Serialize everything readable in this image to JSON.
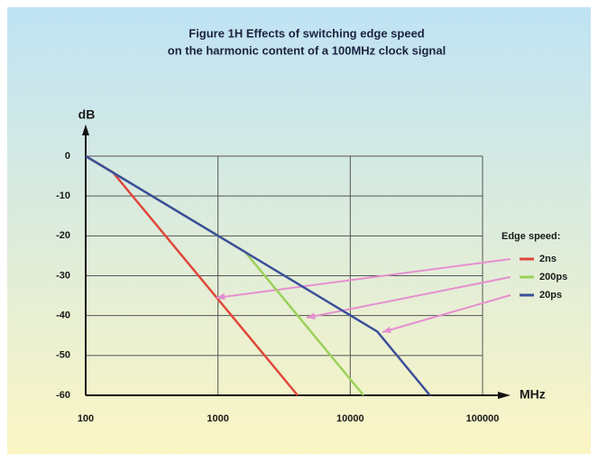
{
  "chart_data": {
    "type": "line",
    "title": "Figure 1H      Effects of switching edge speed",
    "subtitle": "on the harmonic content of a 100MHz clock signal",
    "y_label": "dB",
    "x_label": "MHz",
    "legend_title": "Edge speed:",
    "log_x": true,
    "grid": true,
    "legend_position": "right",
    "xlim": [
      100,
      100000
    ],
    "xticks": [
      100,
      1000,
      10000,
      100000
    ],
    "ylim": [
      -60,
      0
    ],
    "yticks": [
      0,
      -10,
      -20,
      -30,
      -40,
      -50,
      -60
    ],
    "series": [
      {
        "name": "2ns",
        "color": "#e0473a",
        "x": [
          100,
          160,
          4000
        ],
        "values": [
          0,
          -4,
          -60
        ]
      },
      {
        "name": "200ps",
        "color": "#9bd15a",
        "x": [
          100,
          1600,
          12600
        ],
        "values": [
          0,
          -24,
          -60
        ]
      },
      {
        "name": "20ps",
        "color": "#3b4f9a",
        "x": [
          100,
          16000,
          40000
        ],
        "values": [
          0,
          -44,
          -60
        ]
      }
    ]
  }
}
